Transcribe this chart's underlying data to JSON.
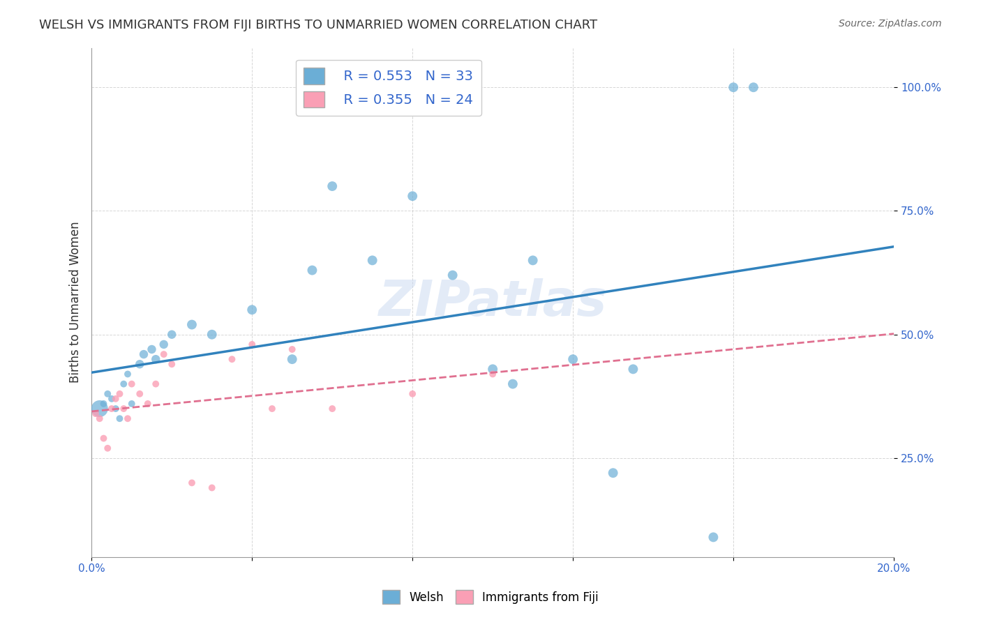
{
  "title": "WELSH VS IMMIGRANTS FROM FIJI BIRTHS TO UNMARRIED WOMEN CORRELATION CHART",
  "source": "Source: ZipAtlas.com",
  "xlabel": "",
  "ylabel": "Births to Unmarried Women",
  "xlim": [
    0.0,
    0.2
  ],
  "ylim": [
    0.05,
    1.08
  ],
  "xticks": [
    0.0,
    0.04,
    0.08,
    0.12,
    0.16,
    0.2
  ],
  "xticklabels": [
    "0.0%",
    "",
    "",
    "",
    "",
    "20.0%"
  ],
  "yticks": [
    0.25,
    0.5,
    0.75,
    1.0
  ],
  "yticklabels": [
    "25.0%",
    "50.0%",
    "75.0%",
    "100.0%"
  ],
  "legend_labels": [
    "Welsh",
    "Immigrants from Fiji"
  ],
  "R_welsh": 0.553,
  "N_welsh": 33,
  "R_fiji": 0.355,
  "N_fiji": 24,
  "blue_color": "#6baed6",
  "pink_color": "#fa9fb5",
  "blue_line_color": "#3182bd",
  "pink_line_color": "#e07090",
  "watermark": "ZIPatlas",
  "welsh_x": [
    0.002,
    0.003,
    0.004,
    0.005,
    0.006,
    0.007,
    0.008,
    0.009,
    0.01,
    0.012,
    0.013,
    0.015,
    0.016,
    0.018,
    0.02,
    0.025,
    0.03,
    0.04,
    0.05,
    0.055,
    0.06,
    0.07,
    0.08,
    0.09,
    0.1,
    0.105,
    0.11,
    0.12,
    0.13,
    0.135,
    0.155,
    0.16,
    0.165
  ],
  "welsh_y": [
    0.35,
    0.36,
    0.38,
    0.37,
    0.35,
    0.33,
    0.4,
    0.42,
    0.36,
    0.44,
    0.46,
    0.47,
    0.45,
    0.48,
    0.5,
    0.52,
    0.5,
    0.55,
    0.45,
    0.63,
    0.8,
    0.65,
    0.78,
    0.62,
    0.43,
    0.4,
    0.65,
    0.45,
    0.22,
    0.43,
    0.09,
    1.0,
    1.0
  ],
  "welsh_size": [
    300,
    50,
    50,
    50,
    50,
    50,
    50,
    50,
    50,
    80,
    80,
    80,
    80,
    80,
    80,
    100,
    100,
    100,
    100,
    100,
    100,
    100,
    100,
    100,
    100,
    100,
    100,
    100,
    100,
    100,
    100,
    100,
    100
  ],
  "fiji_x": [
    0.001,
    0.002,
    0.003,
    0.004,
    0.005,
    0.006,
    0.007,
    0.008,
    0.009,
    0.01,
    0.012,
    0.014,
    0.016,
    0.018,
    0.02,
    0.025,
    0.03,
    0.035,
    0.04,
    0.045,
    0.05,
    0.06,
    0.08,
    0.1
  ],
  "fiji_y": [
    0.34,
    0.33,
    0.29,
    0.27,
    0.35,
    0.37,
    0.38,
    0.35,
    0.33,
    0.4,
    0.38,
    0.36,
    0.4,
    0.46,
    0.44,
    0.2,
    0.19,
    0.45,
    0.48,
    0.35,
    0.47,
    0.35,
    0.38,
    0.42
  ],
  "fiji_size": [
    50,
    50,
    50,
    50,
    50,
    50,
    50,
    50,
    50,
    50,
    50,
    50,
    50,
    50,
    50,
    50,
    50,
    50,
    50,
    50,
    50,
    50,
    50,
    50
  ]
}
